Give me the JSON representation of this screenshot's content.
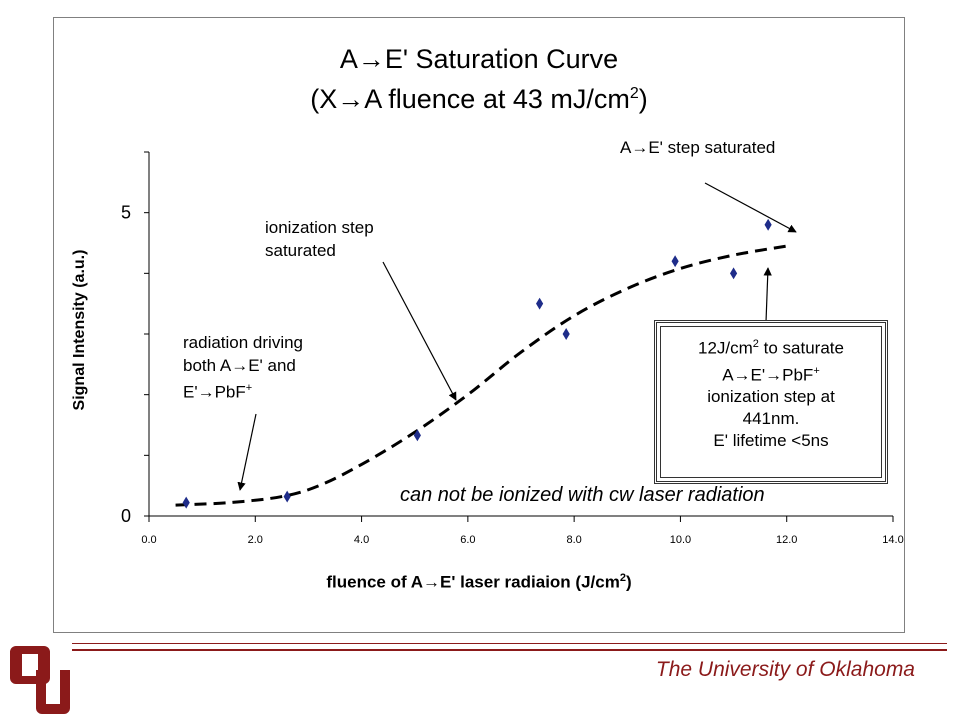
{
  "chart_data": {
    "type": "scatter",
    "title": "A→E' Saturation Curve",
    "subtitle_prefix": "(X→A fluence at 43 mJ/cm",
    "subtitle_sup": "2",
    "subtitle_suffix": ")",
    "xlabel_prefix": "fluence of A→E' laser radiaion (J/cm",
    "xlabel_sup": "2",
    "xlabel_suffix": ")",
    "ylabel": "Signal Intensity (a.u.)",
    "xlim": [
      0,
      14
    ],
    "ylim": [
      0,
      6
    ],
    "x_ticks": [
      "0.0",
      "2.0",
      "4.0",
      "6.0",
      "8.0",
      "10.0",
      "12.0",
      "14.0"
    ],
    "y_tick_labels": [
      {
        "value": 0,
        "label": "0"
      },
      {
        "value": 5,
        "label": "5"
      }
    ],
    "y_minor_ticks": [
      0,
      1,
      2,
      3,
      4,
      5,
      6
    ],
    "points": [
      {
        "x": 0.7,
        "y": 0.22
      },
      {
        "x": 2.6,
        "y": 0.32
      },
      {
        "x": 5.05,
        "y": 1.33
      },
      {
        "x": 7.35,
        "y": 3.5
      },
      {
        "x": 7.85,
        "y": 3.0
      },
      {
        "x": 9.9,
        "y": 4.2
      },
      {
        "x": 11.0,
        "y": 4.0
      },
      {
        "x": 11.65,
        "y": 4.8
      }
    ],
    "fit_curve": [
      {
        "x": 0.5,
        "y": 0.18
      },
      {
        "x": 1.5,
        "y": 0.22
      },
      {
        "x": 2.5,
        "y": 0.32
      },
      {
        "x": 3.2,
        "y": 0.5
      },
      {
        "x": 4.0,
        "y": 0.85
      },
      {
        "x": 5.0,
        "y": 1.38
      },
      {
        "x": 6.0,
        "y": 2.0
      },
      {
        "x": 7.0,
        "y": 2.7
      },
      {
        "x": 8.0,
        "y": 3.3
      },
      {
        "x": 9.0,
        "y": 3.75
      },
      {
        "x": 10.0,
        "y": 4.08
      },
      {
        "x": 11.0,
        "y": 4.3
      },
      {
        "x": 12.0,
        "y": 4.45
      }
    ],
    "colors": {
      "points": "#1f2d8a",
      "curve": "#000000",
      "axes": "#000000"
    }
  },
  "annotations": {
    "step_saturated": "A→E' step saturated",
    "ionization_line1": "ionization step",
    "ionization_line2": "saturated",
    "radiation_line1": "radiation driving",
    "radiation_line2": "both A→E' and",
    "radiation_line3_prefix": "E'→PbF",
    "radiation_line3_sup": "+",
    "cw_note": "can not be ionized with cw laser radiation",
    "box_line1_prefix": "12J/cm",
    "box_line1_sup": "2",
    "box_line1_suffix": " to saturate",
    "box_line2_prefix": "A→E'→PbF",
    "box_line2_sup": "+",
    "box_line3": "ionization step at",
    "box_line4": "441nm.",
    "box_line5": "E' lifetime <5ns"
  },
  "footer": {
    "institution": "The University of Oklahoma",
    "logo": "OU",
    "accent_color": "#8b1a1a"
  }
}
